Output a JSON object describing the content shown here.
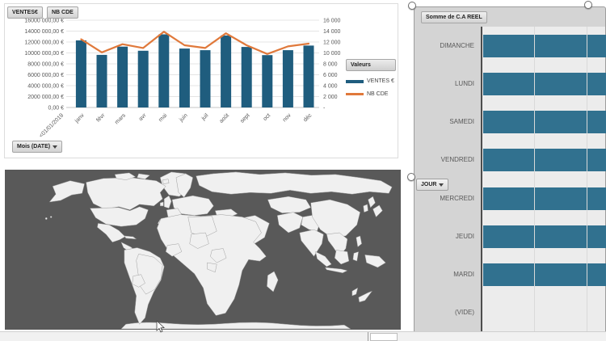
{
  "chart_data": [
    {
      "type": "bar",
      "subtype": "column+line combo (pivot chart)",
      "field_buttons": [
        "VENTES€",
        "NB CDE"
      ],
      "filter_button": "Mois (DATE)",
      "categories": [
        "<01/01/2019",
        "janv",
        "févr",
        "mars",
        "avr",
        "mai",
        "juin",
        "juil",
        "août",
        "sept",
        "oct",
        "nov",
        "déc"
      ],
      "series": [
        {
          "name": "VENTES €",
          "type": "column",
          "axis": "left",
          "color": "#1F5D7E",
          "values": [
            null,
            12300000,
            9650000,
            11150000,
            10400000,
            13400000,
            10800000,
            10500000,
            13200000,
            11100000,
            9600000,
            10500000,
            11350000
          ]
        },
        {
          "name": "NB CDE",
          "type": "line",
          "axis": "right",
          "color": "#E0793B",
          "values": [
            null,
            12500,
            10100,
            11600,
            10900,
            13900,
            11400,
            10900,
            13600,
            11400,
            9800,
            11200,
            11700
          ]
        }
      ],
      "left_axis_labels": [
        "16000 000,00 €",
        "14000 000,00 €",
        "12000 000,00 €",
        "10000 000,00 €",
        "8000 000,00 €",
        "6000 000,00 €",
        "4000 000,00 €",
        "2000 000,00 €",
        "0,00 €"
      ],
      "right_axis_labels": [
        "16 000",
        "14 000",
        "12 000",
        "10 000",
        "8 000",
        "6 000",
        "4 000",
        "2 000",
        "-"
      ],
      "axis_max_left": 16000000,
      "axis_max_right": 16000,
      "legend": {
        "header": "Valeurs",
        "items": [
          {
            "label": "VENTES €"
          },
          {
            "label": "NB CDE"
          }
        ]
      },
      "grid": true,
      "legend_position": "right"
    },
    {
      "type": "bar",
      "orientation": "horizontal",
      "field_button": "Somme de C.A REEL",
      "axis_button": "JOUR",
      "categories": [
        "DIMANCHE",
        "LUNDI",
        "SAMEDI",
        "VENDREDI",
        "MERCREDI",
        "JEUDI",
        "MARDI",
        "(VIDE)"
      ],
      "bar_visible_fraction": [
        1,
        1,
        1,
        1,
        1,
        1,
        1,
        0
      ],
      "bar_color": "#31718F",
      "note": "bars are clipped by the right edge of the screen; (VIDE) has no bar",
      "selected": true
    },
    {
      "type": "map",
      "subtype": "world choropleth",
      "ocean_color": "#595959",
      "land_color": "#F0F0F0",
      "level_colors": {
        "high": "#1F4E79",
        "mid": "#4E8AAE",
        "low": "#AFD2E4",
        "pale": "#DCEAF4"
      },
      "regions": [
        {
          "id": "canada",
          "level": "high"
        },
        {
          "id": "arctic-1",
          "level": "high"
        },
        {
          "id": "arctic-2",
          "level": "high"
        },
        {
          "id": "mexico",
          "level": "low"
        },
        {
          "id": "brazil",
          "level": "mid"
        },
        {
          "id": "bolivia",
          "level": "pale"
        },
        {
          "id": "uk",
          "level": "low"
        },
        {
          "id": "france",
          "level": "high"
        },
        {
          "id": "algeria",
          "level": "low"
        },
        {
          "id": "mali",
          "level": "high"
        },
        {
          "id": "guinea",
          "level": "mid"
        },
        {
          "id": "cameroon",
          "level": "high"
        },
        {
          "id": "gabon",
          "level": "mid"
        },
        {
          "id": "iran",
          "level": "high"
        },
        {
          "id": "afghanistan-pakistan",
          "level": "low"
        },
        {
          "id": "kazakhstan",
          "level": "mid"
        },
        {
          "id": "china",
          "level": "mid"
        },
        {
          "id": "madagascar",
          "level": "low"
        },
        {
          "id": "sumatra",
          "level": "low"
        },
        {
          "id": "borneo",
          "level": "low"
        },
        {
          "id": "java",
          "level": "mid"
        },
        {
          "id": "sulawesi",
          "level": "high"
        },
        {
          "id": "philippines",
          "level": "high"
        }
      ]
    }
  ]
}
